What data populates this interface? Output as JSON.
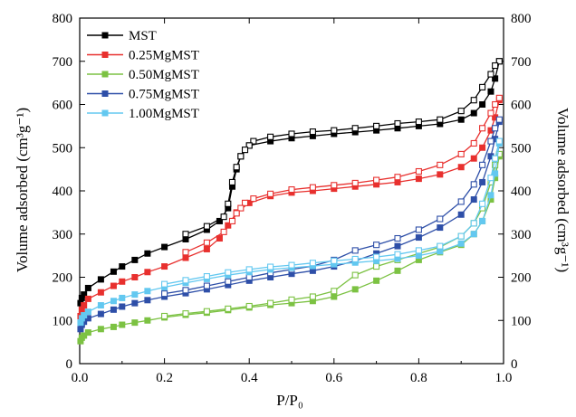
{
  "chart_data": {
    "type": "line",
    "xlabel": "P/P₀",
    "ylabel_left": "Volume adsorbed (cm³g⁻¹)",
    "ylabel_right": "Volume adsorbed (cm³g⁻¹)",
    "xlim": [
      0.0,
      1.0
    ],
    "ylim": [
      0,
      800
    ],
    "x_ticks": [
      "0.0",
      "0.2",
      "0.4",
      "0.6",
      "0.8",
      "1.0"
    ],
    "y_ticks": [
      "0",
      "100",
      "200",
      "300",
      "400",
      "500",
      "600",
      "700",
      "800"
    ],
    "legend_position": "top-left",
    "series": [
      {
        "name": "MST",
        "color": "#000000",
        "adsorption": [
          [
            0.002,
            140
          ],
          [
            0.005,
            152
          ],
          [
            0.01,
            160
          ],
          [
            0.02,
            175
          ],
          [
            0.05,
            195
          ],
          [
            0.08,
            213
          ],
          [
            0.1,
            225
          ],
          [
            0.13,
            240
          ],
          [
            0.16,
            255
          ],
          [
            0.2,
            270
          ],
          [
            0.25,
            288
          ],
          [
            0.3,
            310
          ],
          [
            0.33,
            330
          ],
          [
            0.35,
            360
          ],
          [
            0.36,
            410
          ],
          [
            0.37,
            450
          ],
          [
            0.38,
            480
          ],
          [
            0.4,
            505
          ],
          [
            0.45,
            515
          ],
          [
            0.5,
            522
          ],
          [
            0.55,
            527
          ],
          [
            0.6,
            532
          ],
          [
            0.65,
            536
          ],
          [
            0.7,
            540
          ],
          [
            0.75,
            545
          ],
          [
            0.8,
            550
          ],
          [
            0.85,
            555
          ],
          [
            0.9,
            565
          ],
          [
            0.93,
            580
          ],
          [
            0.95,
            600
          ],
          [
            0.97,
            630
          ],
          [
            0.98,
            660
          ],
          [
            0.99,
            700
          ]
        ],
        "desorption": [
          [
            0.99,
            700
          ],
          [
            0.98,
            690
          ],
          [
            0.97,
            670
          ],
          [
            0.95,
            640
          ],
          [
            0.93,
            610
          ],
          [
            0.9,
            585
          ],
          [
            0.85,
            565
          ],
          [
            0.8,
            560
          ],
          [
            0.75,
            556
          ],
          [
            0.7,
            550
          ],
          [
            0.65,
            545
          ],
          [
            0.6,
            540
          ],
          [
            0.55,
            537
          ],
          [
            0.5,
            532
          ],
          [
            0.45,
            525
          ],
          [
            0.41,
            515
          ],
          [
            0.4,
            505
          ],
          [
            0.39,
            495
          ],
          [
            0.38,
            480
          ],
          [
            0.37,
            455
          ],
          [
            0.36,
            420
          ],
          [
            0.35,
            370
          ],
          [
            0.34,
            340
          ],
          [
            0.3,
            318
          ],
          [
            0.25,
            300
          ]
        ]
      },
      {
        "name": "0.25MgMST",
        "color": "#e8302e",
        "adsorption": [
          [
            0.002,
            110
          ],
          [
            0.005,
            125
          ],
          [
            0.01,
            135
          ],
          [
            0.02,
            150
          ],
          [
            0.05,
            165
          ],
          [
            0.08,
            180
          ],
          [
            0.1,
            190
          ],
          [
            0.13,
            200
          ],
          [
            0.16,
            212
          ],
          [
            0.2,
            225
          ],
          [
            0.25,
            245
          ],
          [
            0.3,
            265
          ],
          [
            0.33,
            290
          ],
          [
            0.35,
            320
          ],
          [
            0.37,
            350
          ],
          [
            0.4,
            372
          ],
          [
            0.45,
            388
          ],
          [
            0.5,
            396
          ],
          [
            0.55,
            400
          ],
          [
            0.6,
            405
          ],
          [
            0.65,
            410
          ],
          [
            0.7,
            415
          ],
          [
            0.75,
            420
          ],
          [
            0.8,
            428
          ],
          [
            0.85,
            438
          ],
          [
            0.9,
            455
          ],
          [
            0.93,
            475
          ],
          [
            0.95,
            500
          ],
          [
            0.97,
            540
          ],
          [
            0.98,
            570
          ],
          [
            0.99,
            610
          ]
        ],
        "desorption": [
          [
            0.99,
            615
          ],
          [
            0.98,
            600
          ],
          [
            0.97,
            580
          ],
          [
            0.95,
            545
          ],
          [
            0.93,
            510
          ],
          [
            0.9,
            485
          ],
          [
            0.85,
            460
          ],
          [
            0.8,
            445
          ],
          [
            0.75,
            432
          ],
          [
            0.7,
            425
          ],
          [
            0.65,
            418
          ],
          [
            0.6,
            413
          ],
          [
            0.55,
            408
          ],
          [
            0.5,
            403
          ],
          [
            0.45,
            393
          ],
          [
            0.41,
            382
          ],
          [
            0.39,
            372
          ],
          [
            0.38,
            360
          ],
          [
            0.37,
            348
          ],
          [
            0.36,
            330
          ],
          [
            0.34,
            305
          ],
          [
            0.3,
            280
          ],
          [
            0.25,
            258
          ]
        ]
      },
      {
        "name": "0.50MgMST",
        "color": "#7cc243",
        "adsorption": [
          [
            0.002,
            52
          ],
          [
            0.005,
            60
          ],
          [
            0.01,
            65
          ],
          [
            0.02,
            72
          ],
          [
            0.05,
            80
          ],
          [
            0.08,
            85
          ],
          [
            0.1,
            90
          ],
          [
            0.13,
            95
          ],
          [
            0.16,
            100
          ],
          [
            0.2,
            107
          ],
          [
            0.25,
            113
          ],
          [
            0.3,
            118
          ],
          [
            0.35,
            124
          ],
          [
            0.4,
            130
          ],
          [
            0.45,
            136
          ],
          [
            0.5,
            140
          ],
          [
            0.55,
            145
          ],
          [
            0.6,
            155
          ],
          [
            0.65,
            172
          ],
          [
            0.7,
            192
          ],
          [
            0.75,
            215
          ],
          [
            0.8,
            240
          ],
          [
            0.85,
            258
          ],
          [
            0.9,
            275
          ],
          [
            0.93,
            300
          ],
          [
            0.95,
            330
          ],
          [
            0.97,
            380
          ],
          [
            0.98,
            430
          ],
          [
            0.99,
            480
          ]
        ],
        "desorption": [
          [
            0.99,
            485
          ],
          [
            0.98,
            460
          ],
          [
            0.97,
            420
          ],
          [
            0.95,
            360
          ],
          [
            0.93,
            325
          ],
          [
            0.9,
            295
          ],
          [
            0.85,
            270
          ],
          [
            0.8,
            255
          ],
          [
            0.75,
            240
          ],
          [
            0.7,
            225
          ],
          [
            0.65,
            205
          ],
          [
            0.6,
            168
          ],
          [
            0.55,
            155
          ],
          [
            0.5,
            148
          ],
          [
            0.45,
            140
          ],
          [
            0.4,
            133
          ],
          [
            0.35,
            127
          ],
          [
            0.3,
            121
          ],
          [
            0.25,
            116
          ],
          [
            0.2,
            110
          ]
        ]
      },
      {
        "name": "0.75MgMST",
        "color": "#2e4fa8",
        "adsorption": [
          [
            0.002,
            80
          ],
          [
            0.005,
            90
          ],
          [
            0.01,
            97
          ],
          [
            0.02,
            105
          ],
          [
            0.05,
            115
          ],
          [
            0.08,
            125
          ],
          [
            0.1,
            132
          ],
          [
            0.13,
            140
          ],
          [
            0.16,
            147
          ],
          [
            0.2,
            155
          ],
          [
            0.25,
            163
          ],
          [
            0.3,
            172
          ],
          [
            0.35,
            182
          ],
          [
            0.4,
            192
          ],
          [
            0.45,
            200
          ],
          [
            0.5,
            208
          ],
          [
            0.55,
            215
          ],
          [
            0.6,
            225
          ],
          [
            0.65,
            238
          ],
          [
            0.7,
            255
          ],
          [
            0.75,
            272
          ],
          [
            0.8,
            292
          ],
          [
            0.85,
            315
          ],
          [
            0.9,
            345
          ],
          [
            0.93,
            380
          ],
          [
            0.95,
            420
          ],
          [
            0.97,
            480
          ],
          [
            0.98,
            520
          ],
          [
            0.99,
            560
          ]
        ],
        "desorption": [
          [
            0.99,
            565
          ],
          [
            0.98,
            545
          ],
          [
            0.97,
            515
          ],
          [
            0.95,
            460
          ],
          [
            0.93,
            415
          ],
          [
            0.9,
            375
          ],
          [
            0.85,
            335
          ],
          [
            0.8,
            310
          ],
          [
            0.75,
            290
          ],
          [
            0.7,
            275
          ],
          [
            0.65,
            262
          ],
          [
            0.6,
            240
          ],
          [
            0.55,
            226
          ],
          [
            0.5,
            218
          ],
          [
            0.45,
            210
          ],
          [
            0.4,
            200
          ],
          [
            0.35,
            190
          ],
          [
            0.3,
            180
          ],
          [
            0.25,
            170
          ],
          [
            0.2,
            162
          ]
        ]
      },
      {
        "name": "1.00MgMST",
        "color": "#63c8f0",
        "adsorption": [
          [
            0.002,
            95
          ],
          [
            0.005,
            105
          ],
          [
            0.01,
            112
          ],
          [
            0.02,
            120
          ],
          [
            0.05,
            135
          ],
          [
            0.08,
            145
          ],
          [
            0.1,
            152
          ],
          [
            0.13,
            160
          ],
          [
            0.16,
            168
          ],
          [
            0.2,
            177
          ],
          [
            0.25,
            187
          ],
          [
            0.3,
            196
          ],
          [
            0.35,
            205
          ],
          [
            0.4,
            212
          ],
          [
            0.45,
            218
          ],
          [
            0.5,
            222
          ],
          [
            0.55,
            226
          ],
          [
            0.6,
            230
          ],
          [
            0.65,
            234
          ],
          [
            0.7,
            238
          ],
          [
            0.75,
            243
          ],
          [
            0.8,
            250
          ],
          [
            0.85,
            260
          ],
          [
            0.9,
            278
          ],
          [
            0.93,
            300
          ],
          [
            0.95,
            330
          ],
          [
            0.97,
            390
          ],
          [
            0.98,
            440
          ],
          [
            0.99,
            510
          ]
        ],
        "desorption": [
          [
            0.99,
            515
          ],
          [
            0.98,
            475
          ],
          [
            0.97,
            430
          ],
          [
            0.95,
            370
          ],
          [
            0.93,
            325
          ],
          [
            0.9,
            295
          ],
          [
            0.85,
            272
          ],
          [
            0.8,
            262
          ],
          [
            0.75,
            253
          ],
          [
            0.7,
            247
          ],
          [
            0.65,
            242
          ],
          [
            0.6,
            238
          ],
          [
            0.55,
            233
          ],
          [
            0.5,
            228
          ],
          [
            0.45,
            224
          ],
          [
            0.4,
            218
          ],
          [
            0.35,
            211
          ],
          [
            0.3,
            202
          ],
          [
            0.25,
            193
          ],
          [
            0.2,
            184
          ]
        ]
      }
    ]
  }
}
